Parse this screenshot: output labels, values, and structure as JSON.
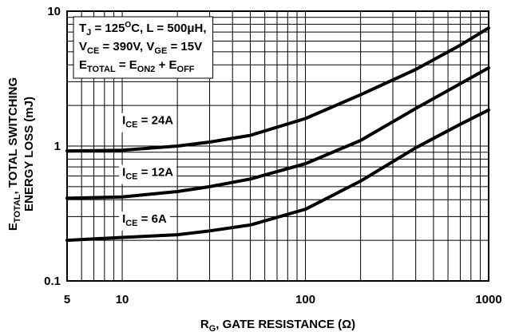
{
  "chart_data": {
    "type": "line",
    "xscale": "log",
    "yscale": "log",
    "xlim": [
      5,
      1000
    ],
    "ylim": [
      0.1,
      10
    ],
    "grid": true,
    "x_ticks": [
      5,
      10,
      100,
      1000
    ],
    "x_tick_labels": [
      "5",
      "10",
      "100",
      "1000"
    ],
    "y_ticks": [
      0.1,
      1,
      10
    ],
    "y_tick_labels": [
      "0.1",
      "1",
      "10"
    ],
    "xlabel": {
      "main": "R",
      "sub": "G",
      "rest": ", GATE RESISTANCE (Ω)"
    },
    "ylabel_line1": {
      "main": "E",
      "sub": "TOTAL",
      "rest": ", TOTAL SWITCHING"
    },
    "ylabel_line2": "ENERGY LOSS (mJ)",
    "conditions": [
      [
        {
          "t": "T"
        },
        {
          "t": "J",
          "sub": true
        },
        {
          "t": " = 125"
        },
        {
          "t": "O",
          "sup": true
        },
        {
          "t": "C, L = 500μH,"
        }
      ],
      [
        {
          "t": "V"
        },
        {
          "t": "CE",
          "sub": true
        },
        {
          "t": " = 390V, V"
        },
        {
          "t": "GE",
          "sub": true
        },
        {
          "t": " = 15V"
        }
      ],
      [
        {
          "t": "E"
        },
        {
          "t": "TOTAL",
          "sub": true
        },
        {
          "t": " = E"
        },
        {
          "t": "ON2",
          "sub": true
        },
        {
          "t": " + E"
        },
        {
          "t": "OFF",
          "sub": true
        }
      ]
    ],
    "series": [
      {
        "name": "I_CE = 24A",
        "label_main": "I",
        "label_sub": "CE",
        "label_rest": " = 24A",
        "label_at": [
          10,
          1.45
        ],
        "points": [
          [
            5,
            0.92
          ],
          [
            10,
            0.93
          ],
          [
            20,
            1.0
          ],
          [
            30,
            1.07
          ],
          [
            50,
            1.2
          ],
          [
            100,
            1.6
          ],
          [
            200,
            2.4
          ],
          [
            400,
            3.7
          ],
          [
            700,
            5.6
          ],
          [
            1000,
            7.5
          ]
        ]
      },
      {
        "name": "I_CE = 12A",
        "label_main": "I",
        "label_sub": "CE",
        "label_rest": " = 12A",
        "label_at": [
          10,
          0.6
        ],
        "points": [
          [
            5,
            0.41
          ],
          [
            10,
            0.42
          ],
          [
            20,
            0.46
          ],
          [
            30,
            0.5
          ],
          [
            50,
            0.57
          ],
          [
            100,
            0.74
          ],
          [
            200,
            1.1
          ],
          [
            400,
            1.9
          ],
          [
            700,
            2.9
          ],
          [
            1000,
            3.8
          ]
        ]
      },
      {
        "name": "I_CE = 6A",
        "label_main": "I",
        "label_sub": "CE",
        "label_rest": " = 6A",
        "label_at": [
          10,
          0.27
        ],
        "points": [
          [
            5,
            0.2
          ],
          [
            10,
            0.21
          ],
          [
            20,
            0.22
          ],
          [
            30,
            0.235
          ],
          [
            50,
            0.26
          ],
          [
            100,
            0.34
          ],
          [
            200,
            0.55
          ],
          [
            400,
            0.97
          ],
          [
            700,
            1.45
          ],
          [
            1000,
            1.85
          ]
        ]
      }
    ]
  }
}
